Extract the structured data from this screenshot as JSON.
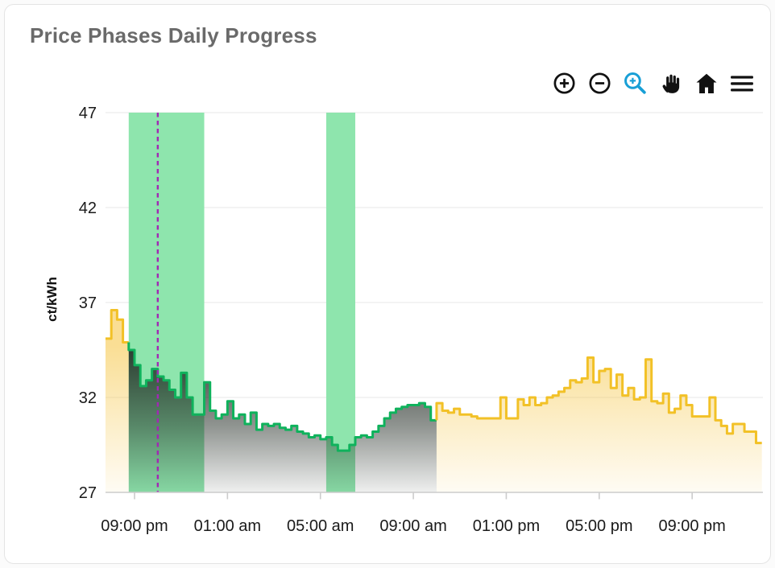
{
  "header": {
    "title": "Price Phases Daily Progress"
  },
  "toolbar": {
    "accent_blue": "#189FD6",
    "icon_color": "#111111",
    "icons": [
      {
        "name": "zoom-in-icon",
        "glyph": "plus-in-circle"
      },
      {
        "name": "zoom-out-icon",
        "glyph": "minus-in-circle"
      },
      {
        "name": "box-zoom-icon",
        "glyph": "magnifier-plus",
        "color": "#189FD6"
      },
      {
        "name": "pan-icon",
        "glyph": "hand"
      },
      {
        "name": "home-icon",
        "glyph": "house"
      },
      {
        "name": "menu-icon",
        "glyph": "hamburger"
      }
    ]
  },
  "chart_data": {
    "type": "area",
    "subtype": "step",
    "title": "Price Phases Daily Progress",
    "xlabel": "",
    "ylabel": "ct/kWh",
    "ylim": [
      27,
      47
    ],
    "y_ticks": [
      47,
      42,
      37,
      32,
      27
    ],
    "x_tick_labels": [
      "09:00 pm",
      "01:00 am",
      "05:00 am",
      "09:00 am",
      "01:00 pm",
      "05:00 pm",
      "09:00 pm"
    ],
    "x_tick_hours": [
      0,
      4,
      8,
      12,
      16,
      20,
      24
    ],
    "start_hour": -1.25,
    "step_hours": 0.25,
    "grid": true,
    "legend": "none",
    "series": [
      {
        "name": "price-expensive-evening",
        "phase": "expensive",
        "color": "#F2C127",
        "values": [
          35.1,
          36.6,
          36.1,
          34.9
        ]
      },
      {
        "name": "price-cheap-night",
        "phase": "cheap",
        "color": "#0FB25C",
        "values": [
          34.5,
          33.7,
          32.6,
          32.9,
          33.5,
          33.1,
          32.9,
          32.4,
          32.0,
          33.3,
          32.0,
          31.1,
          31.1,
          32.8,
          31.3,
          30.9,
          31.1,
          31.8,
          30.9,
          31.1,
          30.6,
          31.2,
          30.3,
          30.6,
          30.5,
          30.6,
          30.4,
          30.3,
          30.5,
          30.2,
          30.1,
          29.9,
          30.0,
          29.8,
          29.9,
          29.5,
          29.2,
          29.2,
          29.5,
          29.9,
          30.0,
          29.9,
          30.2,
          30.5,
          30.9,
          31.2,
          31.4,
          31.5,
          31.6,
          31.6,
          31.7,
          31.5,
          30.8
        ]
      },
      {
        "name": "price-expensive-day",
        "phase": "expensive",
        "color": "#F2C127",
        "values": [
          31.7,
          31.3,
          31.2,
          31.4,
          31.1,
          31.1,
          31.0,
          30.9,
          30.9,
          30.9,
          30.9,
          32.0,
          30.9,
          30.9,
          31.9,
          31.6,
          32.0,
          31.6,
          31.7,
          32.0,
          32.1,
          32.3,
          32.5,
          32.9,
          32.8,
          33.0,
          34.1,
          32.8,
          33.4,
          33.5,
          32.5,
          33.2,
          32.1,
          32.5,
          31.9,
          32.0,
          34.0,
          31.8,
          31.7,
          32.2,
          31.2,
          31.4,
          32.1,
          31.6,
          31.0,
          31.0,
          31.0,
          32.0,
          30.8,
          30.5,
          30.1,
          30.6,
          30.6,
          30.2,
          30.2,
          29.6
        ]
      }
    ],
    "cheap_bands_hours": [
      [
        -0.25,
        3.0
      ],
      [
        8.25,
        9.5
      ]
    ],
    "band_color": "#8EE5AD",
    "now_line": {
      "hour": 1.0,
      "color": "#A129B4",
      "style": "dashed"
    },
    "colors": {
      "grid": "#ECECEC",
      "axis": "#CCCCCC",
      "tick_label": "#1A1A1A",
      "dark_fill": "#222B24",
      "yellow_fill": "#F5C33C"
    }
  }
}
